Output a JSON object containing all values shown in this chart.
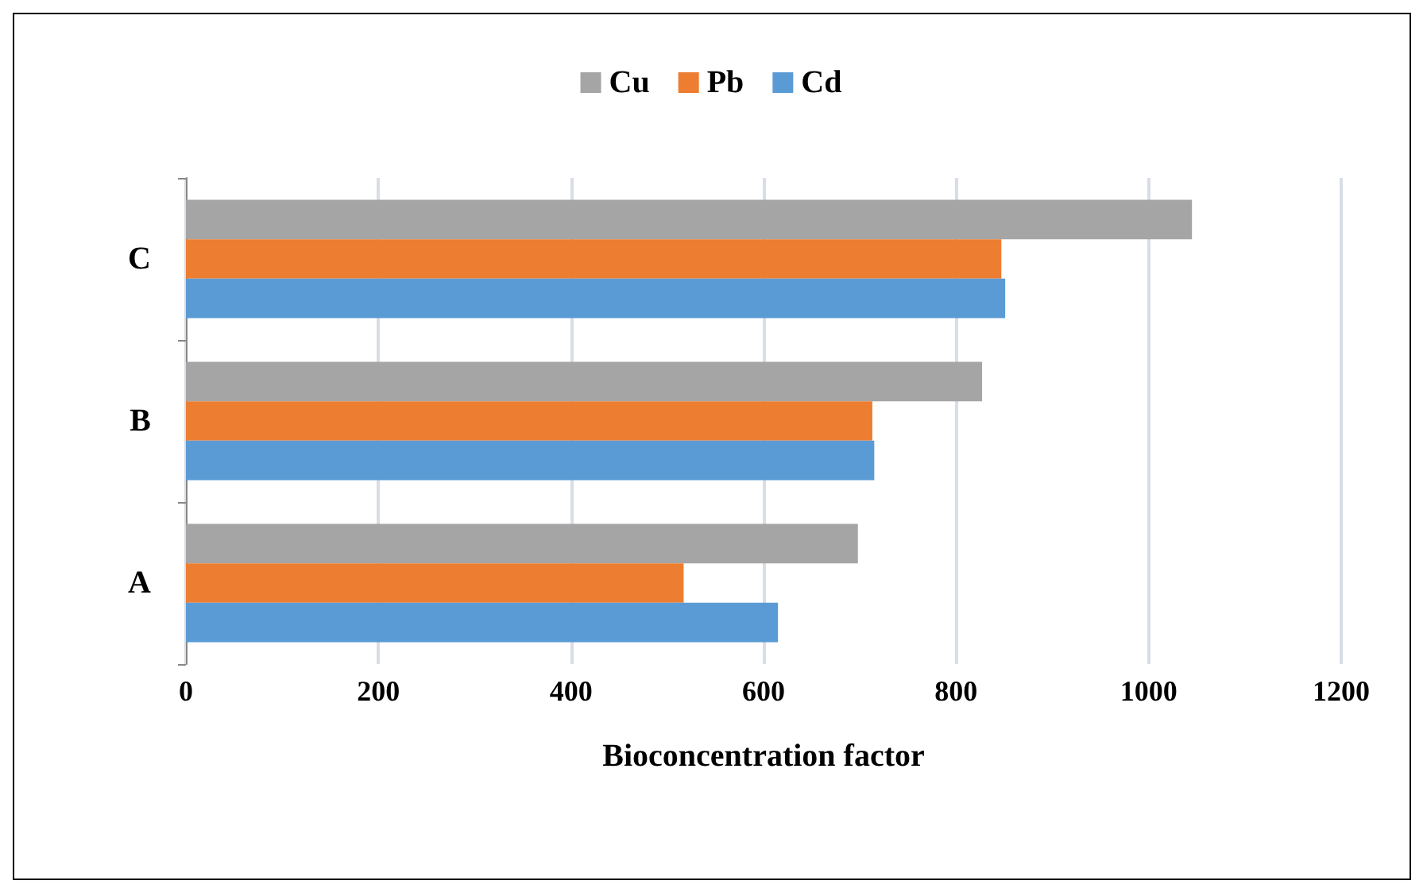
{
  "chart_data": {
    "type": "bar",
    "orientation": "horizontal",
    "xlabel": "Bioconcentration factor",
    "categories": [
      "C",
      "B",
      "A"
    ],
    "series": [
      {
        "name": "Cu",
        "color": "#a5a5a5",
        "values": [
          1045,
          827,
          698
        ]
      },
      {
        "name": "Pb",
        "color": "#ed7d31",
        "values": [
          847,
          713,
          517
        ]
      },
      {
        "name": "Cd",
        "color": "#5b9bd5",
        "values": [
          851,
          715,
          615
        ]
      }
    ],
    "xlim": [
      0,
      1200
    ],
    "xticks": [
      0,
      200,
      400,
      600,
      800,
      1000,
      1200
    ],
    "grid": "x",
    "legend": "top"
  }
}
